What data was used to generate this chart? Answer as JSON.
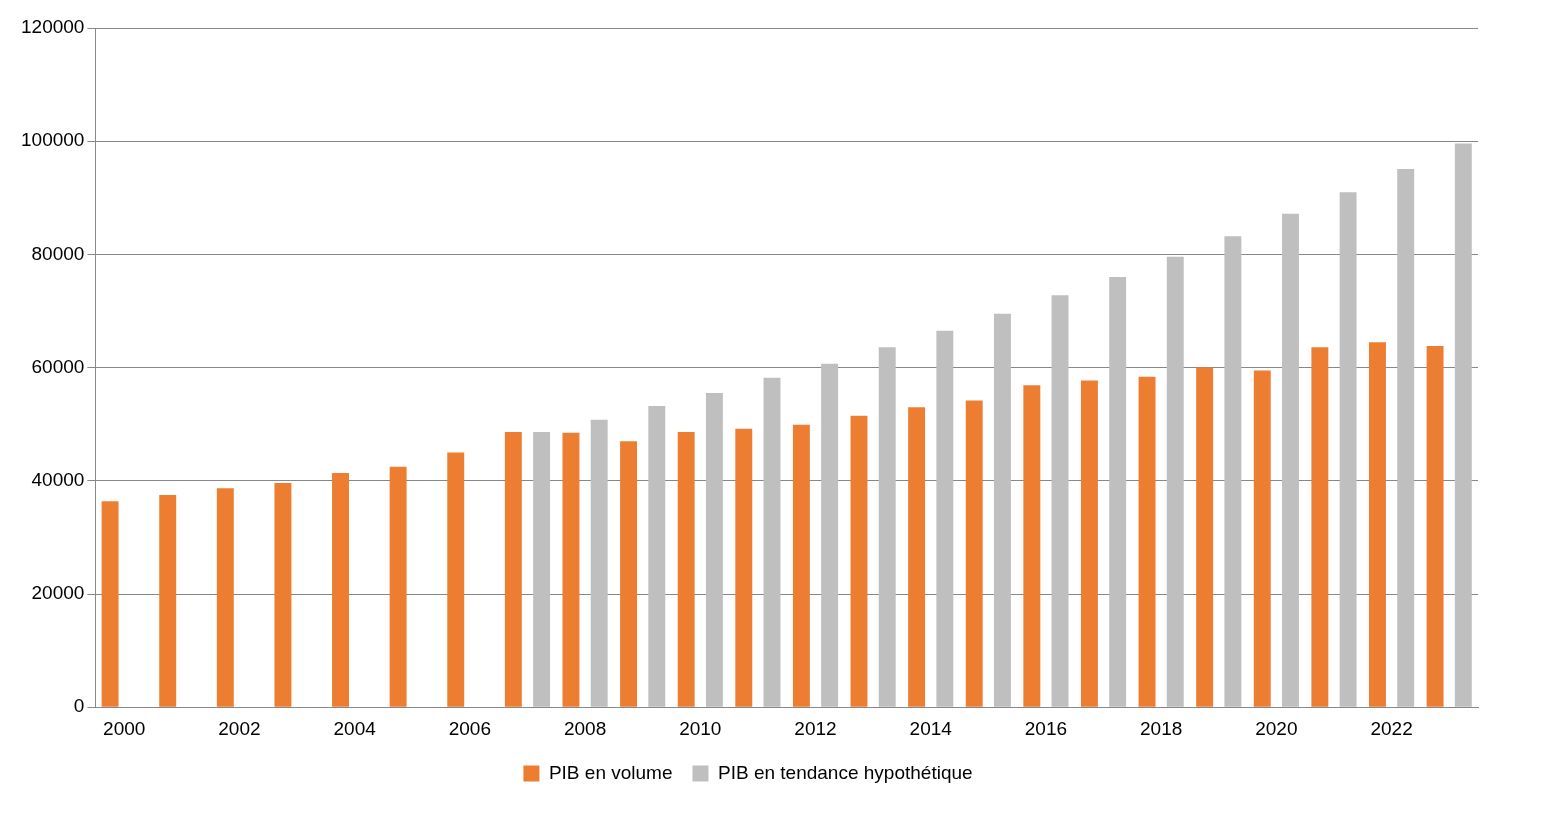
{
  "chart_data": {
    "type": "bar",
    "categories": [
      "2000",
      null,
      "2002",
      null,
      "2004",
      null,
      "2006",
      null,
      "2008",
      null,
      "2010",
      null,
      "2012",
      null,
      "2014",
      null,
      "2016",
      null,
      "2018",
      null,
      "2020",
      null,
      "2022",
      null
    ],
    "series": [
      {
        "name": "PIB en volume",
        "color": "#ed7d31",
        "values": [
          36400,
          37500,
          38700,
          39600,
          41400,
          42500,
          45000,
          48600,
          48500,
          47000,
          48600,
          49200,
          49900,
          51500,
          53000,
          54200,
          56900,
          57700,
          58400,
          60000,
          59500,
          63600,
          64500,
          63800
        ]
      },
      {
        "name": "PIB en tendance hypothétique",
        "color": "#bfbfbf",
        "values": [
          null,
          null,
          null,
          null,
          null,
          null,
          null,
          48600,
          50800,
          53200,
          55500,
          58200,
          60700,
          63600,
          66500,
          69500,
          72800,
          76000,
          79600,
          83200,
          87200,
          91000,
          95100,
          99600
        ]
      }
    ],
    "ylim": [
      0,
      120000
    ],
    "yticks": [
      0,
      20000,
      40000,
      60000,
      80000,
      100000,
      120000
    ],
    "grid": "y",
    "legend": "bottom"
  }
}
